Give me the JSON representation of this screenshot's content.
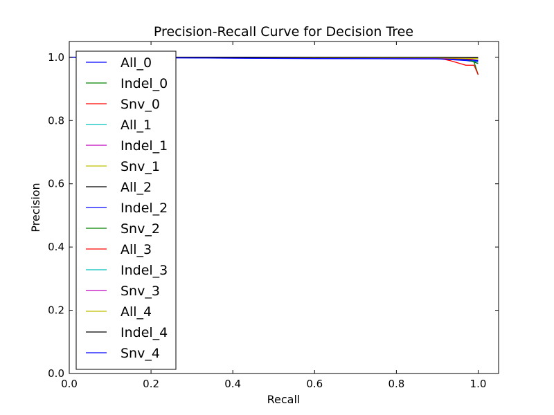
{
  "chart_data": {
    "type": "line",
    "title": "Precision-Recall Curve for Decision Tree",
    "xlabel": "Recall",
    "ylabel": "Precision",
    "xlim": [
      0.0,
      1.05
    ],
    "ylim": [
      0.0,
      1.05
    ],
    "xticks": [
      0.0,
      0.2,
      0.4,
      0.6,
      0.8,
      1.0
    ],
    "xtick_labels": [
      "0.0",
      "0.2",
      "0.4",
      "0.6",
      "0.8",
      "1.0"
    ],
    "yticks": [
      0.0,
      0.2,
      0.4,
      0.6,
      0.8,
      1.0
    ],
    "ytick_labels": [
      "0.0",
      "0.2",
      "0.4",
      "0.6",
      "0.8",
      "1.0"
    ],
    "grid": false,
    "legend_position": "upper-left",
    "series": [
      {
        "name": "All_0",
        "color": "#0000ff",
        "x": [
          0.0,
          0.5,
          0.9,
          0.97,
          1.0
        ],
        "y": [
          1.0,
          0.997,
          0.995,
          0.99,
          0.985
        ]
      },
      {
        "name": "Indel_0",
        "color": "#008000",
        "x": [
          0.0,
          0.9,
          0.97,
          0.99,
          1.0
        ],
        "y": [
          1.0,
          0.999,
          0.995,
          0.985,
          0.945
        ]
      },
      {
        "name": "Snv_0",
        "color": "#ff0000",
        "x": [
          0.0,
          0.9,
          0.93,
          0.97,
          0.99,
          1.0
        ],
        "y": [
          1.0,
          0.998,
          0.99,
          0.975,
          0.975,
          0.945
        ]
      },
      {
        "name": "All_1",
        "color": "#00bfbf",
        "x": [
          0.0,
          0.5,
          0.9,
          0.97,
          1.0
        ],
        "y": [
          1.0,
          0.998,
          0.996,
          0.992,
          0.988
        ]
      },
      {
        "name": "Indel_1",
        "color": "#bf00bf",
        "x": [
          0.0,
          0.9,
          0.97,
          1.0
        ],
        "y": [
          1.0,
          0.998,
          0.994,
          0.99
        ]
      },
      {
        "name": "Snv_1",
        "color": "#bfbf00",
        "x": [
          0.0,
          0.9,
          0.97,
          1.0
        ],
        "y": [
          1.0,
          0.999,
          0.995,
          0.99
        ]
      },
      {
        "name": "All_2",
        "color": "#000000",
        "x": [
          0.0,
          0.5,
          1.0
        ],
        "y": [
          1.0,
          1.0,
          0.999
        ]
      },
      {
        "name": "Indel_2",
        "color": "#0000ff",
        "x": [
          0.0,
          0.9,
          1.0
        ],
        "y": [
          1.0,
          0.999,
          0.998
        ]
      },
      {
        "name": "Snv_2",
        "color": "#008000",
        "x": [
          0.0,
          0.9,
          0.97,
          1.0
        ],
        "y": [
          1.0,
          0.999,
          0.995,
          0.98
        ]
      },
      {
        "name": "All_3",
        "color": "#ff0000",
        "x": [
          0.0,
          0.9,
          0.97,
          1.0
        ],
        "y": [
          1.0,
          0.999,
          0.996,
          0.99
        ]
      },
      {
        "name": "Indel_3",
        "color": "#00bfbf",
        "x": [
          0.0,
          0.9,
          1.0
        ],
        "y": [
          1.0,
          0.999,
          0.997
        ]
      },
      {
        "name": "Snv_3",
        "color": "#bf00bf",
        "x": [
          0.0,
          0.9,
          1.0
        ],
        "y": [
          1.0,
          0.999,
          0.997
        ]
      },
      {
        "name": "All_4",
        "color": "#bfbf00",
        "x": [
          0.0,
          0.9,
          1.0
        ],
        "y": [
          1.0,
          0.999,
          0.996
        ]
      },
      {
        "name": "Indel_4",
        "color": "#000000",
        "x": [
          0.0,
          0.9,
          1.0
        ],
        "y": [
          1.0,
          1.0,
          0.999
        ]
      },
      {
        "name": "Snv_4",
        "color": "#0000ff",
        "x": [
          0.0,
          0.3,
          0.6,
          0.9,
          0.97,
          1.0
        ],
        "y": [
          1.0,
          0.998,
          0.996,
          0.995,
          0.992,
          0.99
        ]
      }
    ]
  }
}
